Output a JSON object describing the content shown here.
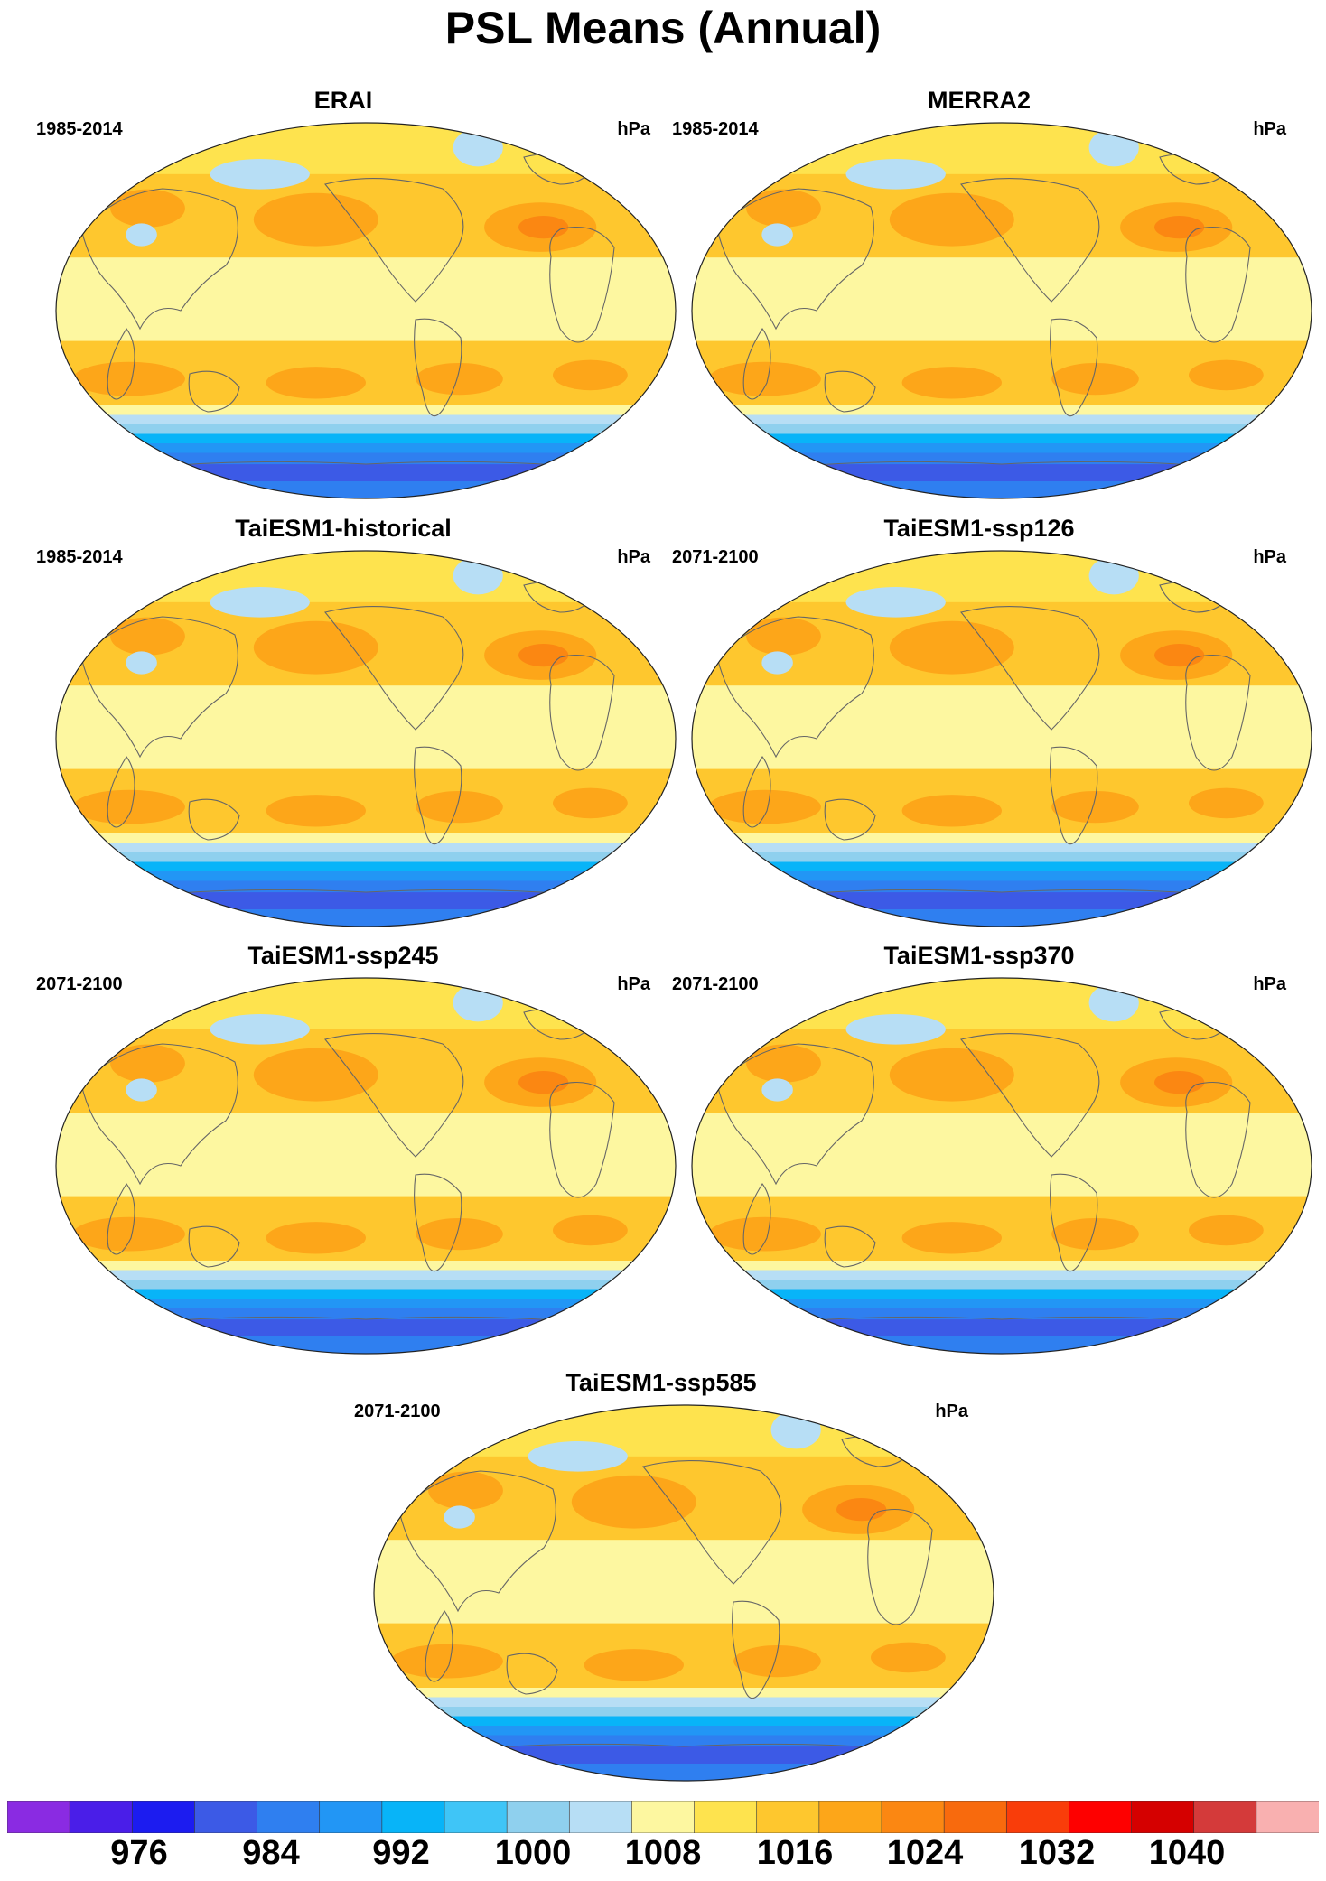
{
  "title": "PSL Means (Annual)",
  "panels": [
    {
      "title": "ERAI",
      "period": "1985-2014",
      "units": "hPa"
    },
    {
      "title": "MERRA2",
      "period": "1985-2014",
      "units": "hPa"
    },
    {
      "title": "TaiESM1-historical",
      "period": "1985-2014",
      "units": "hPa"
    },
    {
      "title": "TaiESM1-ssp126",
      "period": "2071-2100",
      "units": "hPa"
    },
    {
      "title": "TaiESM1-ssp245",
      "period": "2071-2100",
      "units": "hPa"
    },
    {
      "title": "TaiESM1-ssp370",
      "period": "2071-2100",
      "units": "hPa"
    },
    {
      "title": "TaiESM1-ssp585",
      "period": "2071-2100",
      "units": "hPa"
    }
  ],
  "colorbar": {
    "labels": [
      "976",
      "984",
      "992",
      "1000",
      "1008",
      "1016",
      "1024",
      "1032",
      "1040"
    ],
    "colors": [
      "#8a2be2",
      "#4a1ee8",
      "#1c1cf0",
      "#3c5ae6",
      "#2f7ff0",
      "#2296f5",
      "#08b4f8",
      "#3fc5f7",
      "#8fd0ee",
      "#b7def5",
      "#fdf7a0",
      "#fee34e",
      "#fec72e",
      "#fda619",
      "#fb8712",
      "#f86a0d",
      "#f93d0a",
      "#fe0000",
      "#d50000",
      "#d43a3a",
      "#f9b0b0"
    ]
  }
}
